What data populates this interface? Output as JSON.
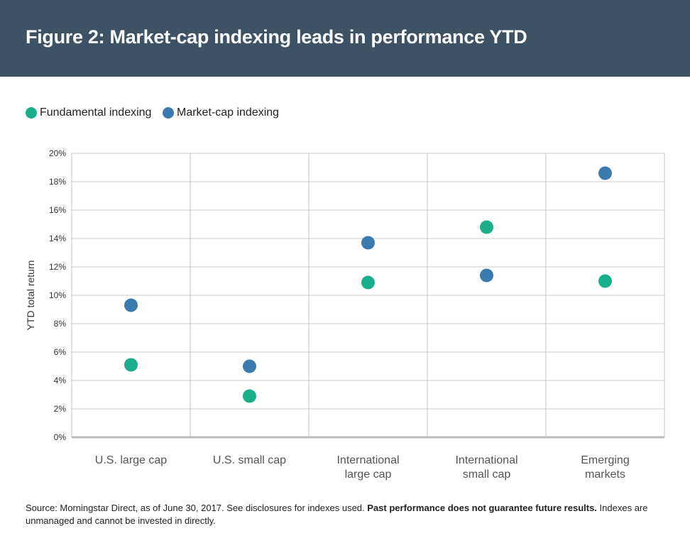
{
  "header": {
    "title": "Figure 2: Market-cap indexing leads in performance YTD",
    "background": "#3e5266"
  },
  "legend": {
    "items": [
      {
        "label": "Fundamental indexing",
        "color": "#1aae8c"
      },
      {
        "label": "Market-cap indexing",
        "color": "#3a7aaf"
      }
    ]
  },
  "chart_data": {
    "type": "scatter",
    "title": "",
    "xlabel": "",
    "ylabel": "YTD total return",
    "ylim": [
      0,
      20
    ],
    "ytick_values": [
      0,
      2,
      4,
      6,
      8,
      10,
      12,
      14,
      16,
      18,
      20
    ],
    "ytick_labels": [
      "0%",
      "2%",
      "4%",
      "6%",
      "8%",
      "10%",
      "12%",
      "14%",
      "16%",
      "18%",
      "20%"
    ],
    "categories": [
      [
        "U.S. large cap"
      ],
      [
        "U.S. small cap"
      ],
      [
        "International",
        "large cap"
      ],
      [
        "International",
        "small cap"
      ],
      [
        "Emerging",
        "markets"
      ]
    ],
    "grid": true,
    "legend_position": "top-left",
    "series": [
      {
        "name": "Fundamental indexing",
        "color": "#1aae8c",
        "values": [
          5.1,
          2.9,
          10.9,
          14.8,
          11.0
        ]
      },
      {
        "name": "Market-cap indexing",
        "color": "#3a7aaf",
        "values": [
          9.3,
          5.0,
          13.7,
          11.4,
          18.6
        ]
      }
    ]
  },
  "footer": {
    "source": "Source: Morningstar Direct, as of June 30, 2017. See disclosures for indexes used.",
    "disclaimer_bold": "Past performance does not guarantee future results.",
    "disclaimer_rest": "Indexes are unmanaged and cannot be invested in directly."
  }
}
